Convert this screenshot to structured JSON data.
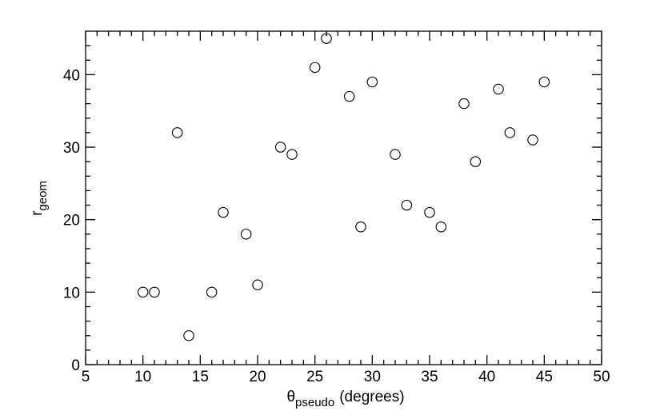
{
  "chart_data": {
    "type": "scatter",
    "xlabel": {
      "main": "θ",
      "sub": "pseudo",
      "tail": "(degrees)"
    },
    "ylabel": {
      "main": "r",
      "sub": "geom"
    },
    "x": [
      10,
      11,
      13,
      14,
      16,
      17,
      19,
      20,
      22,
      23,
      25,
      26,
      28,
      29,
      30,
      32,
      33,
      35,
      36,
      38,
      39,
      41,
      42,
      44,
      45
    ],
    "values": [
      10,
      10,
      32,
      4,
      10,
      21,
      18,
      11,
      30,
      29,
      41,
      45,
      37,
      19,
      39,
      29,
      22,
      21,
      19,
      36,
      28,
      38,
      32,
      31,
      39
    ],
    "color": "#000000",
    "xlim": [
      5,
      50
    ],
    "ylim": [
      0,
      46
    ],
    "xticks": [
      5,
      10,
      15,
      20,
      25,
      30,
      35,
      40,
      45,
      50
    ],
    "yticks": [
      0,
      10,
      20,
      30,
      40
    ],
    "xminorticks": [
      6,
      7,
      8,
      9,
      11,
      12,
      13,
      14,
      16,
      17,
      18,
      19,
      21,
      22,
      23,
      24,
      26,
      27,
      28,
      29,
      31,
      32,
      33,
      34,
      36,
      37,
      38,
      39,
      41,
      42,
      43,
      44,
      46,
      47,
      48,
      49
    ],
    "yminorticks": [
      2,
      4,
      6,
      8,
      12,
      14,
      16,
      18,
      22,
      24,
      26,
      28,
      32,
      34,
      36,
      38,
      42,
      44
    ]
  }
}
